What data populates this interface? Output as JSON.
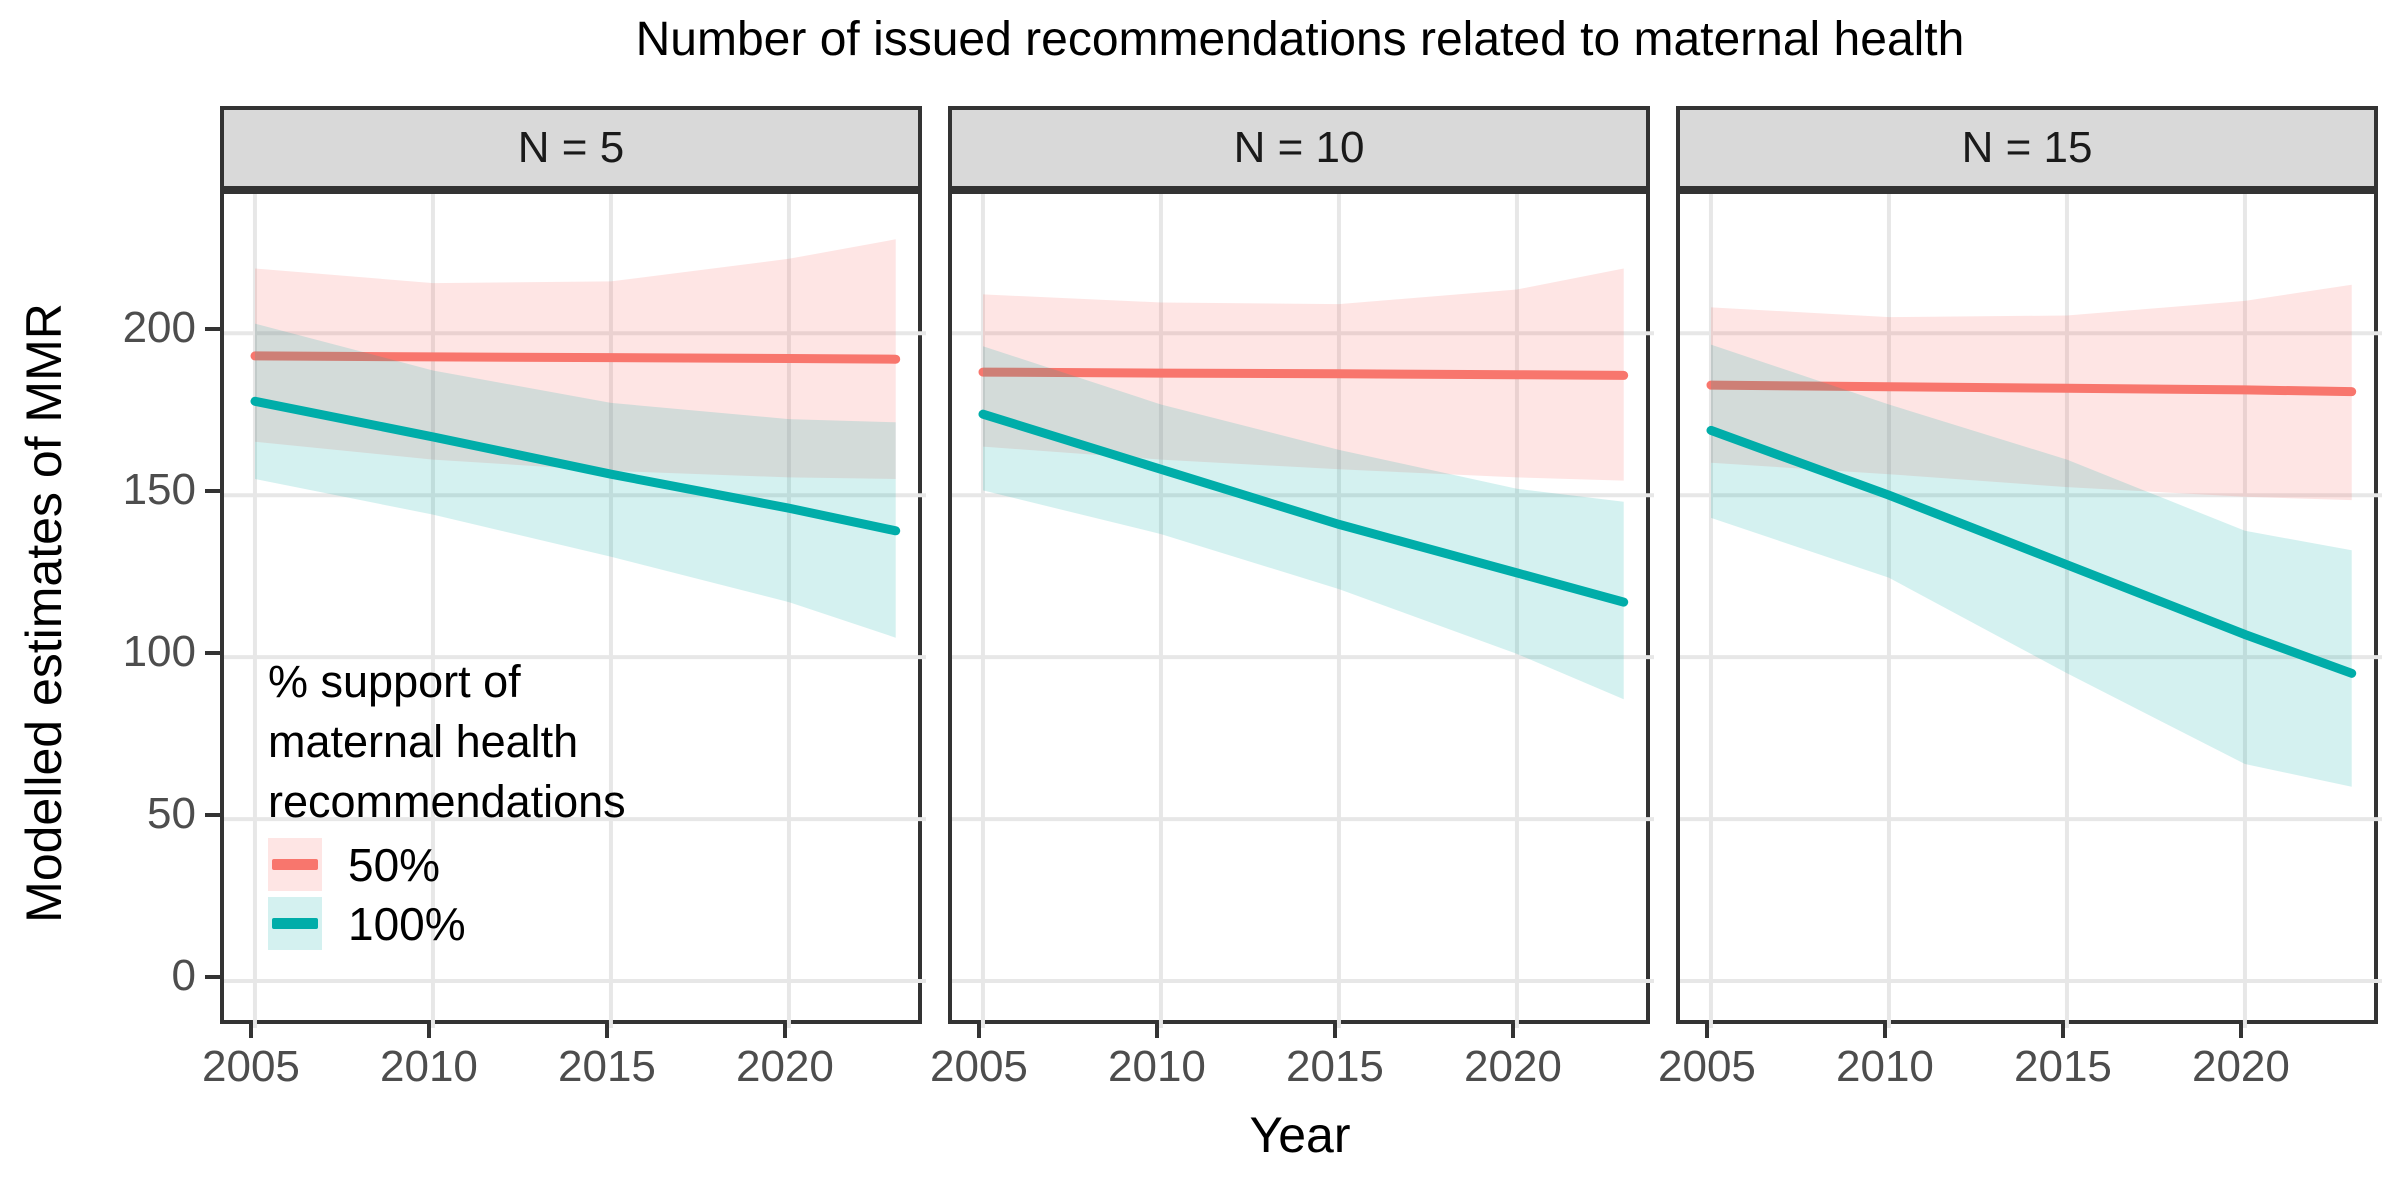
{
  "title": "Number of issued recommendations related to maternal health",
  "x_axis": {
    "label": "Year",
    "tick_labels": [
      "2005",
      "2010",
      "2015",
      "2020"
    ],
    "tick_years": [
      2005,
      2010,
      2015,
      2020
    ]
  },
  "y_axis": {
    "label": "Modelled estimates of MMR",
    "tick_labels": [
      "0",
      "50",
      "100",
      "150",
      "200"
    ],
    "tick_values": [
      0,
      50,
      100,
      150,
      200
    ]
  },
  "legend": {
    "title": "% support of\nmaternal health\nrecommendations",
    "items": [
      {
        "label": "50%",
        "line_color": "#F8766D",
        "band_color": "rgba(248,118,109,0.19)"
      },
      {
        "label": "100%",
        "line_color": "#00ADA9",
        "band_color": "rgba(0,173,169,0.17)"
      }
    ]
  },
  "style": {
    "grid_color": "#E7E7E7",
    "border_color": "#333333",
    "strip_fill": "#D9D9D9",
    "tick_text_color": "#4D4D4D",
    "red_line": "#F8766D",
    "teal_line": "#00ADA9",
    "red_band": "rgba(248,118,109,0.19)",
    "teal_band": "rgba(0,173,169,0.17)"
  },
  "chart_data": {
    "type": "line",
    "title": "Number of issued recommendations related to maternal health",
    "xlabel": "Year",
    "ylabel": "Modelled estimates of MMR",
    "x": [
      2005,
      2010,
      2015,
      2020,
      2023
    ],
    "x_domain": [
      2004.13,
      2023.85
    ],
    "ylim": [
      -14.5,
      243
    ],
    "grid": true,
    "legend_position": "inside bottom-left of first facet",
    "facets": [
      {
        "label": "N = 5",
        "series": [
          {
            "name": "50%",
            "line": [
              193,
              192.7,
              192.5,
              192.2,
              192
            ],
            "upper": [
              220,
              215.5,
              216,
              223,
              229
            ],
            "lower": [
              166.5,
              161,
              157.5,
              155.5,
              155
            ]
          },
          {
            "name": "100%",
            "line": [
              179,
              168,
              156.5,
              146,
              139
            ],
            "upper": [
              203,
              188.5,
              178.5,
              173.5,
              172.5
            ],
            "lower": [
              155,
              144,
              131,
              117,
              106
            ]
          }
        ]
      },
      {
        "label": "N = 10",
        "series": [
          {
            "name": "50%",
            "line": [
              188,
              187.7,
              187.5,
              187.2,
              187
            ],
            "upper": [
              212,
              209.5,
              209,
              213.5,
              220
            ],
            "lower": [
              165,
              161,
              158,
              155.5,
              154.5
            ]
          },
          {
            "name": "100%",
            "line": [
              175,
              158,
              141,
              126,
              117
            ],
            "upper": [
              196,
              178,
              164,
              152,
              148
            ],
            "lower": [
              151.5,
              138,
              121,
              101,
              87
            ]
          }
        ]
      },
      {
        "label": "N = 15",
        "series": [
          {
            "name": "50%",
            "line": [
              184,
              183.5,
              183,
              182.5,
              182
            ],
            "upper": [
              208,
              205,
              205.5,
              210,
              215
            ],
            "lower": [
              160,
              156.5,
              152.5,
              149.5,
              148.5
            ]
          },
          {
            "name": "100%",
            "line": [
              170,
              150,
              128.5,
              107,
              95
            ],
            "upper": [
              196.5,
              178,
              161,
              139,
              133
            ],
            "lower": [
              143,
              124.5,
              95,
              67,
              60
            ]
          }
        ]
      }
    ]
  }
}
